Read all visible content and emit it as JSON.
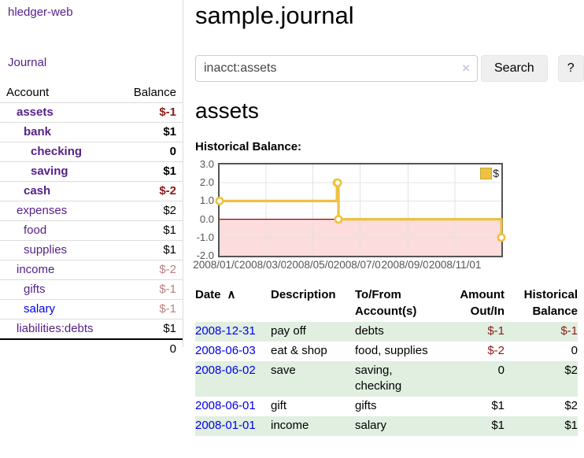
{
  "sidebar": {
    "brand": "hledger-web",
    "journal_link": "Journal",
    "accounts": {
      "header_account": "Account",
      "header_balance": "Balance",
      "rows": [
        {
          "name": "assets",
          "balance": "$-1",
          "depth": 0,
          "bold": true
        },
        {
          "name": "bank",
          "balance": "$1",
          "depth": 1,
          "bold": true
        },
        {
          "name": "checking",
          "balance": "0",
          "depth": 2,
          "bold": true
        },
        {
          "name": "saving",
          "balance": "$1",
          "depth": 2,
          "bold": true
        },
        {
          "name": "cash",
          "balance": "$-2",
          "depth": 1,
          "bold": true
        },
        {
          "name": "expenses",
          "balance": "$2",
          "depth": 0,
          "bold": false
        },
        {
          "name": "food",
          "balance": "$1",
          "depth": 1,
          "bold": false
        },
        {
          "name": "supplies",
          "balance": "$1",
          "depth": 1,
          "bold": false
        },
        {
          "name": "income",
          "balance": "$-2",
          "depth": 0,
          "bold": false
        },
        {
          "name": "gifts",
          "balance": "$-1",
          "depth": 1,
          "bold": false
        },
        {
          "name": "salary",
          "balance": "$-1",
          "depth": 1,
          "bold": false,
          "link_blue": true
        },
        {
          "name": "liabilities:debts",
          "balance": "$1",
          "depth": 0,
          "bold": false
        }
      ],
      "total": "0"
    }
  },
  "main": {
    "title": "sample.journal"
  },
  "search": {
    "value": "inacct:assets",
    "clear_icon": "×",
    "button_label": "Search",
    "help_label": "?"
  },
  "account_page": {
    "heading": "assets",
    "chart_label": "Historical Balance:"
  },
  "chart_data": {
    "type": "line",
    "step": true,
    "title": "Historical Balance",
    "series": [
      {
        "name": "$",
        "color": "#edc240",
        "points": [
          [
            "2008-01-01",
            1
          ],
          [
            "2008-06-01",
            2
          ],
          [
            "2008-06-02",
            2
          ],
          [
            "2008-06-03",
            0
          ],
          [
            "2008-12-31",
            -1
          ]
        ]
      }
    ],
    "xlim": [
      "2008-01-01",
      "2008-12-31"
    ],
    "ylim": [
      -2,
      3
    ],
    "x_ticks": [
      "2008/01/01",
      "2008/03/01",
      "2008/05/01",
      "2008/07/01",
      "2008/09/01",
      "2008/11/01"
    ],
    "y_ticks": [
      "3.0",
      "2.0",
      "1.0",
      "0.0",
      "-1.0",
      "-2.0"
    ],
    "grid": true,
    "grid_color": "#e3e3e3",
    "negative_fill": "#fcdcdc",
    "zero_line_color": "#a00000",
    "legend_position": "top-right"
  },
  "register": {
    "headers": {
      "date": "Date",
      "sort_icon": "∧",
      "description": "Description",
      "accounts": "To/From Account(s)",
      "amount": "Amount Out/In",
      "balance": "Historical Balance"
    },
    "rows": [
      {
        "date": "2008-12-31",
        "description": "pay off",
        "accounts": "debts",
        "amount": "$-1",
        "balance": "$-1"
      },
      {
        "date": "2008-06-03",
        "description": "eat & shop",
        "accounts": "food, supplies",
        "amount": "$-2",
        "balance": "0"
      },
      {
        "date": "2008-06-02",
        "description": "save",
        "accounts": "saving, checking",
        "amount": "0",
        "balance": "$2"
      },
      {
        "date": "2008-06-01",
        "description": "gift",
        "accounts": "gifts",
        "amount": "$1",
        "balance": "$2"
      },
      {
        "date": "2008-01-01",
        "description": "income",
        "accounts": "salary",
        "amount": "$1",
        "balance": "$1"
      }
    ]
  }
}
